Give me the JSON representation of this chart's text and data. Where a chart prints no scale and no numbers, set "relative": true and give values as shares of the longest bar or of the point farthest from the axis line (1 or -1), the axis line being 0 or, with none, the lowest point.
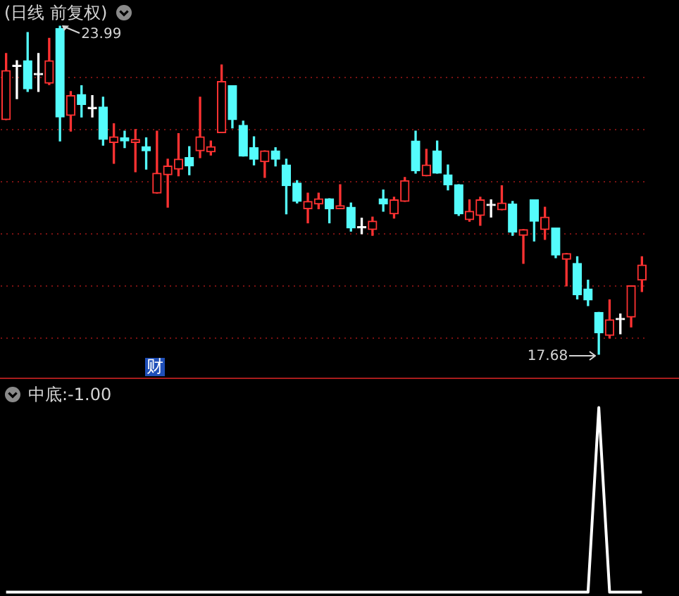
{
  "chart_data": [
    {
      "type": "candlestick",
      "title": "(日线 前复权)",
      "categories": [
        null,
        null,
        null,
        null,
        null,
        null,
        null,
        null,
        null,
        null,
        null,
        null,
        null,
        null,
        null,
        null,
        null,
        null,
        null,
        null,
        null,
        null,
        null,
        null,
        null,
        null,
        null,
        null,
        null,
        null,
        null,
        null,
        null,
        null,
        null,
        null,
        null,
        null,
        null,
        null,
        null,
        null,
        null,
        null,
        null,
        null,
        null,
        null,
        null,
        null,
        null,
        null,
        null,
        null,
        null,
        null,
        null,
        null,
        null,
        null
      ],
      "ohlc": [
        [
          22.19,
          23.46,
          22.19,
          23.13
        ],
        [
          23.21,
          23.32,
          22.59,
          23.21
        ],
        [
          23.32,
          23.86,
          22.73,
          22.78
        ],
        [
          23.05,
          23.46,
          22.73,
          23.05
        ],
        [
          22.89,
          23.75,
          22.86,
          23.32
        ],
        [
          23.94,
          23.99,
          21.78,
          22.24
        ],
        [
          22.27,
          22.73,
          21.97,
          22.65
        ],
        [
          22.67,
          22.84,
          22.24,
          22.48
        ],
        [
          22.4,
          22.65,
          22.24,
          22.4
        ],
        [
          22.43,
          22.62,
          21.7,
          21.81
        ],
        [
          21.75,
          22.11,
          21.35,
          21.86
        ],
        [
          21.84,
          21.97,
          21.65,
          21.78
        ],
        [
          21.75,
          22.0,
          21.19,
          21.81
        ],
        [
          21.67,
          21.84,
          21.24,
          21.59
        ],
        [
          20.78,
          21.97,
          20.78,
          21.16
        ],
        [
          21.13,
          21.43,
          20.51,
          21.3
        ],
        [
          21.24,
          21.92,
          21.11,
          21.43
        ],
        [
          21.46,
          21.67,
          21.13,
          21.3
        ],
        [
          21.59,
          22.62,
          21.46,
          21.86
        ],
        [
          21.57,
          21.78,
          21.51,
          21.67
        ],
        [
          21.94,
          23.24,
          21.94,
          22.92
        ],
        [
          22.84,
          22.84,
          22.03,
          22.19
        ],
        [
          22.08,
          22.16,
          21.49,
          21.49
        ],
        [
          21.65,
          21.86,
          21.32,
          21.43
        ],
        [
          21.38,
          21.59,
          21.08,
          21.59
        ],
        [
          21.59,
          21.65,
          21.3,
          21.43
        ],
        [
          21.32,
          21.43,
          20.38,
          20.92
        ],
        [
          20.97,
          21.02,
          20.59,
          20.62
        ],
        [
          20.48,
          20.78,
          20.21,
          20.62
        ],
        [
          20.57,
          20.78,
          20.48,
          20.67
        ],
        [
          20.67,
          20.67,
          20.21,
          20.48
        ],
        [
          20.48,
          20.94,
          20.48,
          20.54
        ],
        [
          20.51,
          20.59,
          20.05,
          20.11
        ],
        [
          20.11,
          20.3,
          20.0,
          20.11
        ],
        [
          20.08,
          20.32,
          19.97,
          20.24
        ],
        [
          20.67,
          20.84,
          20.43,
          20.57
        ],
        [
          20.38,
          20.7,
          20.3,
          20.65
        ],
        [
          20.62,
          21.08,
          20.62,
          21.02
        ],
        [
          21.78,
          21.97,
          21.16,
          21.21
        ],
        [
          21.11,
          21.62,
          21.11,
          21.32
        ],
        [
          21.59,
          21.78,
          21.16,
          21.16
        ],
        [
          21.13,
          21.32,
          20.84,
          20.94
        ],
        [
          20.94,
          20.94,
          20.35,
          20.38
        ],
        [
          20.27,
          20.65,
          20.24,
          20.43
        ],
        [
          20.35,
          20.7,
          20.16,
          20.65
        ],
        [
          20.54,
          20.65,
          20.32,
          20.54
        ],
        [
          20.46,
          20.92,
          20.46,
          20.59
        ],
        [
          20.57,
          20.62,
          19.97,
          20.03
        ],
        [
          19.97,
          20.08,
          19.43,
          20.08
        ],
        [
          20.65,
          20.65,
          19.86,
          20.24
        ],
        [
          20.08,
          20.51,
          19.89,
          20.32
        ],
        [
          20.11,
          20.11,
          19.54,
          19.59
        ],
        [
          19.51,
          19.62,
          19.0,
          19.62
        ],
        [
          19.43,
          19.56,
          18.75,
          18.83
        ],
        [
          18.94,
          19.11,
          18.62,
          18.73
        ],
        [
          18.49,
          18.49,
          17.68,
          18.1
        ],
        [
          18.05,
          18.73,
          18.0,
          18.35
        ],
        [
          18.35,
          18.46,
          18.08,
          18.35
        ],
        [
          18.4,
          19.0,
          18.21,
          19.0
        ],
        [
          19.11,
          19.56,
          18.89,
          19.4
        ]
      ],
      "colors": [
        "#ff3232",
        "#ffffff",
        "#54fcfc",
        "#ffffff",
        "#ff3232",
        "#54fcfc",
        "#ff3232",
        "#54fcfc",
        "#ffffff",
        "#54fcfc",
        "#ff3232",
        "#54fcfc",
        "#ff3232",
        "#54fcfc",
        "#ff3232",
        "#ff3232",
        "#ff3232",
        "#54fcfc",
        "#ff3232",
        "#ff3232",
        "#ff3232",
        "#54fcfc",
        "#54fcfc",
        "#54fcfc",
        "#ff3232",
        "#54fcfc",
        "#54fcfc",
        "#54fcfc",
        "#ff3232",
        "#ff3232",
        "#54fcfc",
        "#ff3232",
        "#54fcfc",
        "#ffffff",
        "#ff3232",
        "#54fcfc",
        "#ff3232",
        "#ff3232",
        "#54fcfc",
        "#ff3232",
        "#54fcfc",
        "#54fcfc",
        "#54fcfc",
        "#ff3232",
        "#ff3232",
        "#ffffff",
        "#ff3232",
        "#54fcfc",
        "#ff3232",
        "#54fcfc",
        "#ff3232",
        "#54fcfc",
        "#ff3232",
        "#54fcfc",
        "#54fcfc",
        "#54fcfc",
        "#ff3232",
        "#ffffff",
        "#ff3232",
        "#ff3232"
      ],
      "yticks": [
        {
          "value": 18,
          "label": null
        },
        {
          "value": 19,
          "label": null
        },
        {
          "value": 20,
          "label": null
        },
        {
          "value": 21,
          "label": null
        },
        {
          "value": 22,
          "label": null
        },
        {
          "value": 23,
          "label": null
        }
      ],
      "grid": "y",
      "annotations": [
        "23.99",
        "17.68",
        "财"
      ]
    },
    {
      "type": "line",
      "title": "中底:-1.00",
      "relative": true,
      "color": "#ffffff",
      "categories": [
        null,
        null,
        null,
        null,
        null,
        null,
        null,
        null,
        null,
        null,
        null,
        null,
        null,
        null,
        null,
        null,
        null,
        null,
        null,
        null,
        null,
        null,
        null,
        null,
        null,
        null,
        null,
        null,
        null,
        null,
        null,
        null,
        null,
        null,
        null,
        null,
        null,
        null,
        null,
        null,
        null,
        null,
        null,
        null,
        null,
        null,
        null,
        null,
        null,
        null,
        null,
        null,
        null,
        null,
        null,
        null,
        null,
        null,
        null,
        null
      ],
      "values": [
        0,
        0,
        0,
        0,
        0,
        0,
        0,
        0,
        0,
        0,
        0,
        0,
        0,
        0,
        0,
        0,
        0,
        0,
        0,
        0,
        0,
        0,
        0,
        0,
        0,
        0,
        0,
        0,
        0,
        0,
        0,
        0,
        0,
        0,
        0,
        0,
        0,
        0,
        0,
        0,
        0,
        0,
        0,
        0,
        0,
        0,
        0,
        0,
        0,
        0,
        0,
        0,
        0,
        0,
        0,
        1,
        0,
        0,
        0,
        0
      ]
    }
  ]
}
